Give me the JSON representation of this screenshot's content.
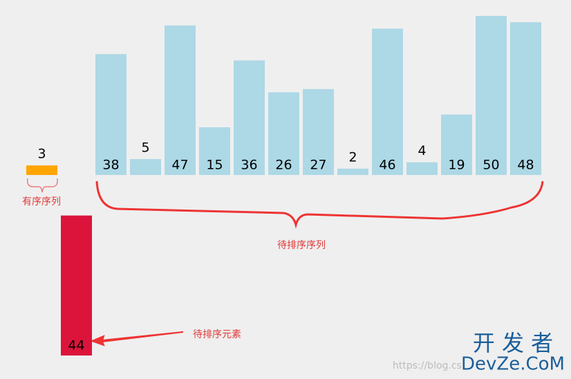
{
  "sorted": {
    "values": [
      3
    ],
    "label": "有序序列"
  },
  "unsorted": {
    "values": [
      38,
      5,
      47,
      15,
      36,
      26,
      27,
      2,
      46,
      4,
      19,
      50,
      48
    ],
    "label": "待排序序列"
  },
  "current": {
    "value": 44,
    "label": "待排序元素"
  },
  "watermark": {
    "title": "开 发 者",
    "site": "DevZe.CoM",
    "url": "https://blog.cs"
  }
}
